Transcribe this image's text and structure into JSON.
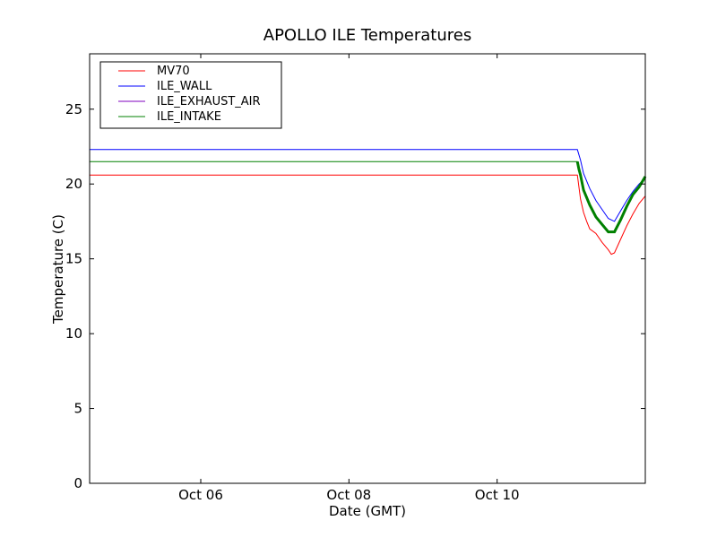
{
  "chart_data": {
    "type": "line",
    "title": "APOLLO ILE Temperatures",
    "xlabel": "Date (GMT)",
    "ylabel": "Temperature (C)",
    "x_type": "date",
    "xlim": [
      "2013-10-04T12:00",
      "2013-10-12T00:00"
    ],
    "ylim": [
      0,
      28.7
    ],
    "grid": false,
    "legend_position": "top-left",
    "x_ticks": [
      {
        "x": "2013-10-06T00:00",
        "label": "Oct 06"
      },
      {
        "x": "2013-10-08T00:00",
        "label": "Oct 08"
      },
      {
        "x": "2013-10-10T00:00",
        "label": "Oct 10"
      }
    ],
    "y_ticks": [
      0,
      5,
      10,
      15,
      20,
      25
    ],
    "series": [
      {
        "name": "MV70",
        "color": "#ff0000",
        "points": [
          [
            "2013-10-04T12:00",
            20.6
          ],
          [
            "2013-10-11T02:00",
            20.6
          ],
          [
            "2013-10-11T03:00",
            19.0
          ],
          [
            "2013-10-11T04:00",
            18.1
          ],
          [
            "2013-10-11T05:00",
            17.5
          ],
          [
            "2013-10-11T06:00",
            17.0
          ],
          [
            "2013-10-11T08:00",
            16.7
          ],
          [
            "2013-10-11T10:00",
            16.1
          ],
          [
            "2013-10-11T12:00",
            15.6
          ],
          [
            "2013-10-11T13:00",
            15.3
          ],
          [
            "2013-10-11T14:00",
            15.4
          ],
          [
            "2013-10-11T16:00",
            16.3
          ],
          [
            "2013-10-11T18:00",
            17.2
          ],
          [
            "2013-10-11T20:00",
            18.0
          ],
          [
            "2013-10-11T22:00",
            18.7
          ],
          [
            "2013-10-12T00:00",
            19.2
          ]
        ]
      },
      {
        "name": "ILE_WALL",
        "color": "#0000ff",
        "points": [
          [
            "2013-10-04T12:00",
            22.3
          ],
          [
            "2013-10-11T02:00",
            22.3
          ],
          [
            "2013-10-11T03:00",
            21.6
          ],
          [
            "2013-10-11T04:00",
            20.7
          ],
          [
            "2013-10-11T06:00",
            19.7
          ],
          [
            "2013-10-11T08:00",
            18.9
          ],
          [
            "2013-10-11T10:00",
            18.3
          ],
          [
            "2013-10-11T12:00",
            17.7
          ],
          [
            "2013-10-11T14:00",
            17.5
          ],
          [
            "2013-10-11T16:00",
            18.2
          ],
          [
            "2013-10-11T18:00",
            18.9
          ],
          [
            "2013-10-11T20:00",
            19.5
          ],
          [
            "2013-10-11T22:00",
            20.0
          ],
          [
            "2013-10-12T00:00",
            20.4
          ]
        ]
      },
      {
        "name": "ILE_EXHAUST_AIR",
        "color": "#7f00bf",
        "points": []
      },
      {
        "name": "ILE_INTAKE",
        "color": "#008000",
        "points": [
          [
            "2013-10-04T12:00",
            21.5
          ],
          [
            "2013-10-11T02:00",
            21.5
          ],
          [
            "2013-10-11T02:30",
            21.0
          ],
          [
            "2013-10-11T03:00",
            20.6
          ],
          [
            "2013-10-11T04:00",
            19.6
          ],
          [
            "2013-10-11T06:00",
            18.6
          ],
          [
            "2013-10-11T08:00",
            17.8
          ],
          [
            "2013-10-11T10:00",
            17.3
          ],
          [
            "2013-10-11T12:00",
            16.8
          ],
          [
            "2013-10-11T14:00",
            16.8
          ],
          [
            "2013-10-11T16:00",
            17.6
          ],
          [
            "2013-10-11T18:00",
            18.5
          ],
          [
            "2013-10-11T20:00",
            19.3
          ],
          [
            "2013-10-11T22:00",
            19.8
          ],
          [
            "2013-10-12T00:00",
            20.5
          ]
        ]
      }
    ]
  }
}
